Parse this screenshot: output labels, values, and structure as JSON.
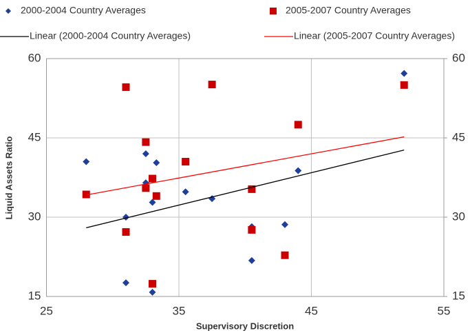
{
  "chart_data": {
    "type": "scatter",
    "x_label": "Supervisory Discretion",
    "y_label": "Liquid Assets Ratio",
    "xlim": [
      25,
      55
    ],
    "xticks": [
      25,
      35,
      45,
      55
    ],
    "ylim": [
      15,
      60
    ],
    "yticks": [
      15,
      30,
      45,
      60
    ],
    "y2lim": [
      15,
      60
    ],
    "y2ticks": [
      15,
      30,
      45,
      60
    ],
    "grid": true,
    "legend": "top",
    "series": [
      {
        "name": "2000-2004 Country Averages",
        "color": "#1f3f9a",
        "marker": "diamond",
        "x": [
          28,
          31,
          31,
          32.5,
          32.5,
          33,
          33,
          33.3,
          35.5,
          37.5,
          40.5,
          40.5,
          43,
          44,
          52
        ],
        "values": [
          40.5,
          17.6,
          30,
          42,
          36.5,
          15.8,
          32.8,
          40.3,
          34.8,
          33.5,
          28.2,
          21.8,
          28.6,
          38.8,
          57.2
        ]
      },
      {
        "name": "2005-2007 Country Averages",
        "color": "#cc0000",
        "marker": "square",
        "x": [
          28,
          31,
          31,
          32.5,
          32.5,
          33,
          33,
          33.3,
          35.5,
          37.5,
          40.5,
          40.5,
          43,
          44,
          52
        ],
        "values": [
          34.3,
          54.6,
          27.2,
          44.2,
          35.5,
          37.3,
          17.4,
          34,
          40.5,
          55.1,
          35.3,
          27.6,
          22.8,
          47.5,
          55
        ]
      },
      {
        "name": "Linear (2000-2004 Country Averages)",
        "color": "#000000",
        "marker": "line",
        "x": [
          28,
          52
        ],
        "values": [
          28,
          42.7
        ]
      },
      {
        "name": "Linear (2005-2007 Country Averages)",
        "color": "#ff0000",
        "marker": "line",
        "x": [
          28,
          52
        ],
        "values": [
          34.2,
          45.2
        ]
      }
    ]
  }
}
